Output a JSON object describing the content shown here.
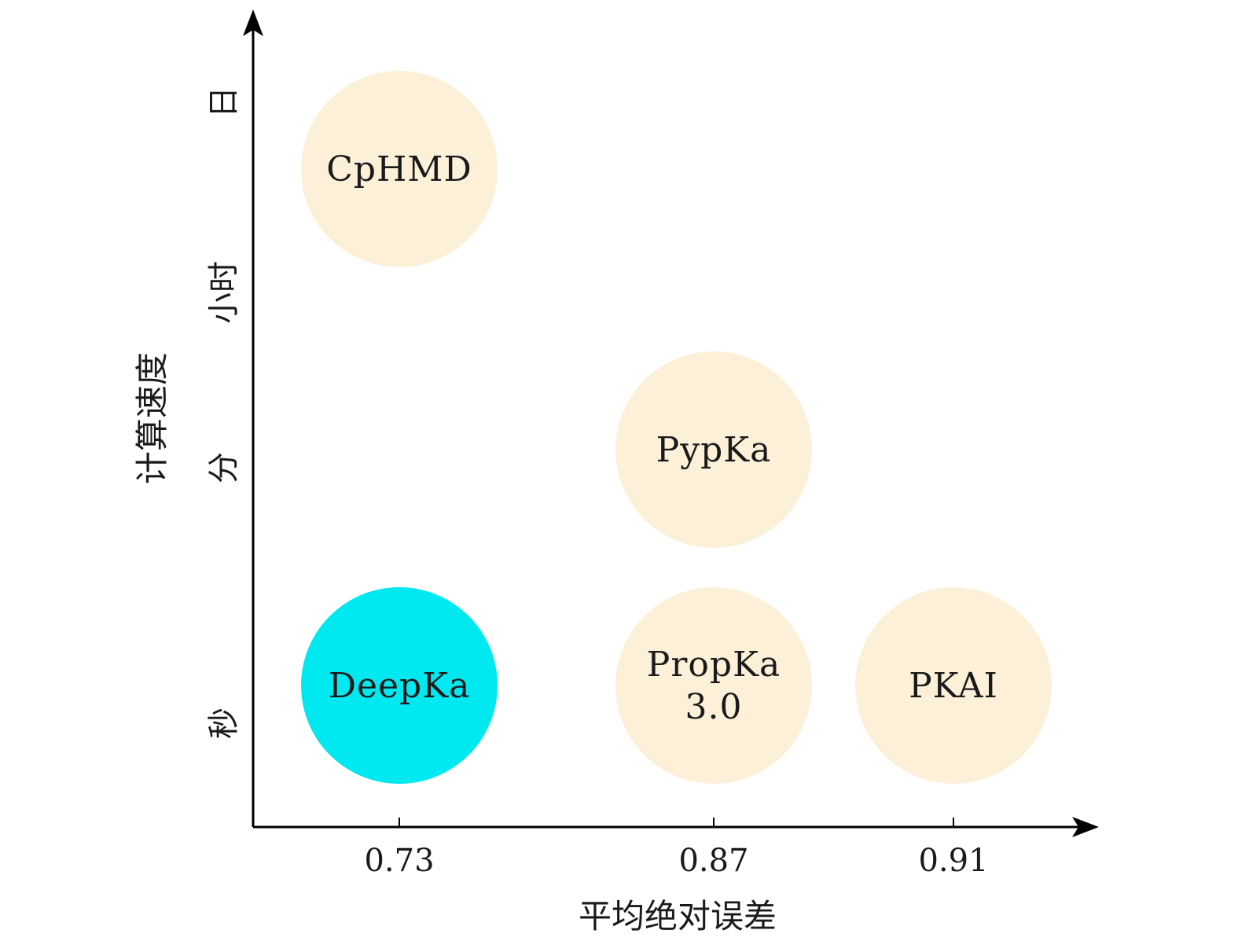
{
  "chart_data": {
    "type": "scatter",
    "title": "",
    "xlabel": "平均绝对误差",
    "ylabel": "计算速度",
    "x_ticks": [
      "0.73",
      "0.87",
      "0.91"
    ],
    "y_ticks": [
      "秒",
      "分",
      "小时",
      "日"
    ],
    "points": [
      {
        "name": "CpHMD",
        "lines": [
          "CpHMD"
        ],
        "x": "0.73",
        "y": "日",
        "color": "#fdf0d9"
      },
      {
        "name": "PypKa",
        "lines": [
          "PypKa"
        ],
        "x": "0.87",
        "y": "分",
        "color": "#fdf0d9"
      },
      {
        "name": "DeepKa",
        "lines": [
          "DeepKa"
        ],
        "x": "0.73",
        "y": "秒",
        "color": "#00e8f0"
      },
      {
        "name": "PropKa 3.0",
        "lines": [
          "PropKa",
          "3.0"
        ],
        "x": "0.87",
        "y": "秒",
        "color": "#fdf0d9"
      },
      {
        "name": "PKAI",
        "lines": [
          "PKAI"
        ],
        "x": "0.91",
        "y": "秒",
        "color": "#fdf0d9"
      }
    ],
    "colors": {
      "axis": "#000000",
      "default_bubble": "#fdf0d9",
      "highlight_bubble": "#00e8f0"
    }
  }
}
